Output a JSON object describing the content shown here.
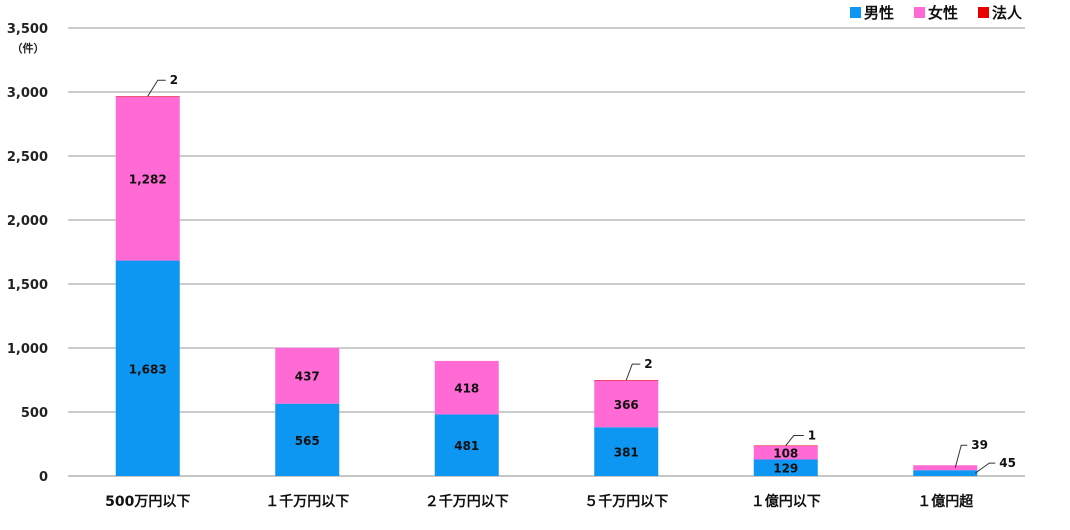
{
  "chart_data": {
    "type": "bar",
    "stacked": true,
    "categories": [
      "500万円以下",
      "１千万円以下",
      "２千万円以下",
      "５千万円以下",
      "１億円以下",
      "１億円超"
    ],
    "series": [
      {
        "name": "男性",
        "color": "#0d96f2",
        "values": [
          1683,
          565,
          481,
          381,
          129,
          45
        ]
      },
      {
        "name": "女性",
        "color": "#ff6ad5",
        "values": [
          1282,
          437,
          418,
          366,
          108,
          39
        ]
      },
      {
        "name": "法人",
        "color": "#e80000",
        "values": [
          2,
          0,
          0,
          2,
          1,
          0
        ]
      }
    ],
    "data_labels": {
      "男性": [
        "1,683",
        "565",
        "481",
        "381",
        "129",
        "45"
      ],
      "女性": [
        "1,282",
        "437",
        "418",
        "366",
        "108",
        "39"
      ],
      "法人": [
        "2",
        "",
        "",
        "2",
        "1",
        ""
      ]
    },
    "ylabel": "（件）",
    "ylim": [
      0,
      3500
    ],
    "yticks": [
      0,
      500,
      1000,
      1500,
      2000,
      2500,
      3000,
      3500
    ],
    "ytick_labels": [
      "0",
      "500",
      "1,000",
      "1,500",
      "2,000",
      "2,500",
      "3,000",
      "3,500"
    ],
    "grid": true,
    "legend_position": "top-right",
    "legend": [
      "男性",
      "女性",
      "法人"
    ]
  }
}
